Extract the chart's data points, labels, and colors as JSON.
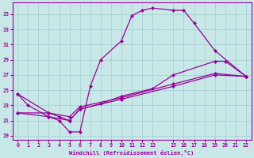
{
  "background_color": "#c8e8e8",
  "line_color": "#990099",
  "grid_color": "#a0cece",
  "xlabel": "Windchill (Refroidissement éolien,°C)",
  "xlim": [
    -0.5,
    22.5
  ],
  "ylim": [
    18.5,
    36.5
  ],
  "yticks": [
    19,
    21,
    23,
    25,
    27,
    29,
    31,
    33,
    35
  ],
  "xticks": [
    0,
    1,
    2,
    3,
    4,
    5,
    6,
    7,
    8,
    9,
    10,
    11,
    12,
    13,
    15,
    16,
    17,
    18,
    19,
    20,
    21,
    22
  ],
  "curves": [
    {
      "x": [
        0,
        1,
        3,
        4,
        5,
        6,
        7,
        8,
        10,
        11,
        12,
        13,
        15,
        16,
        17,
        19,
        22
      ],
      "y": [
        24.5,
        23.0,
        21.5,
        21.0,
        19.5,
        19.5,
        25.5,
        29.0,
        31.5,
        34.8,
        35.5,
        35.8,
        35.5,
        35.5,
        33.8,
        30.2,
        26.8
      ]
    },
    {
      "x": [
        0,
        3,
        4,
        5,
        6,
        8,
        10,
        13,
        15,
        19,
        20,
        22
      ],
      "y": [
        24.5,
        22.0,
        21.5,
        21.0,
        22.5,
        23.2,
        24.2,
        25.2,
        27.0,
        28.8,
        28.8,
        26.8
      ]
    },
    {
      "x": [
        0,
        3,
        5,
        6,
        10,
        15,
        19,
        22
      ],
      "y": [
        22.0,
        21.5,
        21.0,
        22.5,
        23.8,
        25.5,
        27.0,
        26.8
      ]
    },
    {
      "x": [
        0,
        3,
        5,
        6,
        10,
        15,
        19,
        22
      ],
      "y": [
        22.0,
        22.0,
        21.5,
        22.8,
        24.0,
        25.8,
        27.2,
        26.8
      ]
    }
  ]
}
